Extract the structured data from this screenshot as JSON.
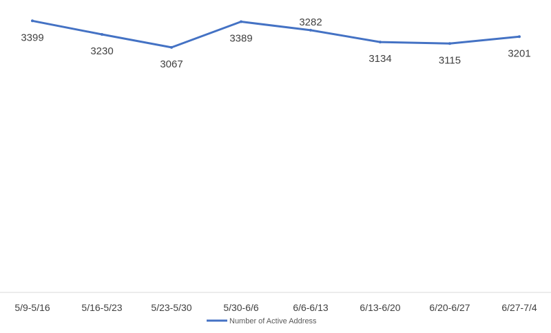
{
  "chart_data": {
    "type": "line",
    "title": "",
    "xlabel": "",
    "ylabel": "",
    "categories": [
      "5/9-5/16",
      "5/16-5/23",
      "5/23-5/30",
      "5/30-6/6",
      "6/6-6/13",
      "6/13-6/20",
      "6/20-6/27",
      "6/27-7/4"
    ],
    "series": [
      {
        "name": "Number of Active Address",
        "values": [
          3399,
          3230,
          3067,
          3389,
          3282,
          3134,
          3115,
          3201
        ],
        "color": "#4472C4"
      }
    ],
    "ylim": [
      0,
      3600
    ],
    "grid": false,
    "y_axis_visible": false,
    "data_labels": true,
    "legend_position": "bottom"
  }
}
